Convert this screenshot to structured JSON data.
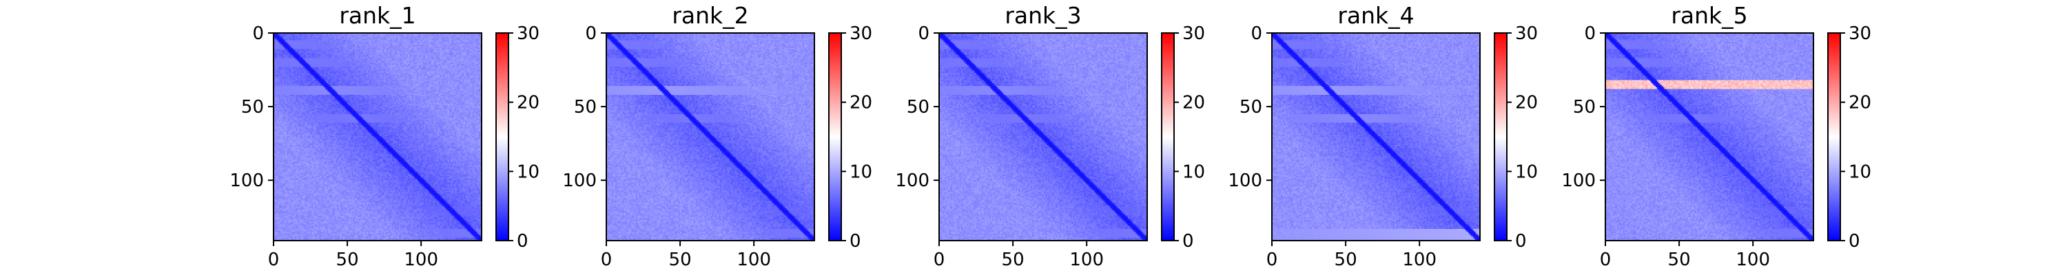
{
  "figure": {
    "colormap": "bwr",
    "colors": {
      "low": "#0000ff",
      "mid": "#ffffff",
      "high": "#ff0000"
    }
  },
  "chart_data": [
    {
      "type": "heatmap",
      "title": "rank_1",
      "size": 141,
      "x_ticks": [
        0,
        50,
        100
      ],
      "y_ticks": [
        0,
        50,
        100
      ],
      "x_tick_labels": [
        "0",
        "50",
        "100"
      ],
      "y_tick_labels": [
        "0",
        "50",
        "100"
      ],
      "xlim": [
        0,
        141
      ],
      "ylim": [
        141,
        0
      ],
      "colorbar": {
        "vmin": 0,
        "vmax": 30,
        "ticks": [
          0,
          10,
          20,
          30
        ],
        "tick_labels": [
          "0",
          "10",
          "20",
          "30"
        ]
      },
      "pattern": {
        "diagonal": 0.5,
        "base": 4.5,
        "light_rows": [
          [
            5,
            10,
            7
          ],
          [
            17,
            22,
            7
          ],
          [
            36,
            41,
            8
          ],
          [
            55,
            60,
            7
          ],
          [
            118,
            123,
            6
          ],
          [
            133,
            138,
            7
          ]
        ],
        "light_cols": [
          [
            5,
            10,
            5
          ],
          [
            19,
            24,
            5
          ],
          [
            57,
            62,
            5
          ],
          [
            95,
            105,
            5
          ]
        ],
        "hot_rows": []
      }
    },
    {
      "type": "heatmap",
      "title": "rank_2",
      "size": 141,
      "x_ticks": [
        0,
        50,
        100
      ],
      "y_ticks": [
        0,
        50,
        100
      ],
      "x_tick_labels": [
        "0",
        "50",
        "100"
      ],
      "y_tick_labels": [
        "0",
        "50",
        "100"
      ],
      "xlim": [
        0,
        141
      ],
      "ylim": [
        141,
        0
      ],
      "colorbar": {
        "vmin": 0,
        "vmax": 30,
        "ticks": [
          0,
          10,
          20,
          30
        ],
        "tick_labels": [
          "0",
          "10",
          "20",
          "30"
        ]
      },
      "pattern": {
        "diagonal": 0.5,
        "base": 4.5,
        "light_rows": [
          [
            5,
            10,
            7
          ],
          [
            17,
            22,
            7
          ],
          [
            36,
            41,
            9
          ],
          [
            55,
            60,
            7
          ],
          [
            118,
            123,
            6
          ],
          [
            133,
            138,
            7
          ]
        ],
        "light_cols": [
          [
            5,
            10,
            5
          ],
          [
            19,
            24,
            5
          ],
          [
            57,
            62,
            5
          ],
          [
            95,
            105,
            5
          ]
        ],
        "hot_rows": []
      }
    },
    {
      "type": "heatmap",
      "title": "rank_3",
      "size": 141,
      "x_ticks": [
        0,
        50,
        100
      ],
      "y_ticks": [
        0,
        50,
        100
      ],
      "x_tick_labels": [
        "0",
        "50",
        "100"
      ],
      "y_tick_labels": [
        "0",
        "50",
        "100"
      ],
      "xlim": [
        0,
        141
      ],
      "ylim": [
        141,
        0
      ],
      "colorbar": {
        "vmin": 0,
        "vmax": 30,
        "ticks": [
          0,
          10,
          20,
          30
        ],
        "tick_labels": [
          "0",
          "10",
          "20",
          "30"
        ]
      },
      "pattern": {
        "diagonal": 0.5,
        "base": 4.5,
        "light_rows": [
          [
            5,
            10,
            7
          ],
          [
            17,
            22,
            7
          ],
          [
            36,
            41,
            8
          ],
          [
            55,
            60,
            7
          ],
          [
            118,
            123,
            6
          ],
          [
            133,
            138,
            7
          ]
        ],
        "light_cols": [
          [
            5,
            10,
            5
          ],
          [
            19,
            24,
            5
          ],
          [
            57,
            62,
            5
          ],
          [
            95,
            105,
            5
          ]
        ],
        "hot_rows": []
      }
    },
    {
      "type": "heatmap",
      "title": "rank_4",
      "size": 141,
      "x_ticks": [
        0,
        50,
        100
      ],
      "y_ticks": [
        0,
        50,
        100
      ],
      "x_tick_labels": [
        "0",
        "50",
        "100"
      ],
      "y_tick_labels": [
        "0",
        "50",
        "100"
      ],
      "xlim": [
        0,
        141
      ],
      "ylim": [
        141,
        0
      ],
      "colorbar": {
        "vmin": 0,
        "vmax": 30,
        "ticks": [
          0,
          10,
          20,
          30
        ],
        "tick_labels": [
          "0",
          "10",
          "20",
          "30"
        ]
      },
      "pattern": {
        "diagonal": 0.5,
        "base": 4.5,
        "light_rows": [
          [
            5,
            10,
            7
          ],
          [
            17,
            22,
            7
          ],
          [
            36,
            41,
            9
          ],
          [
            55,
            60,
            8
          ],
          [
            118,
            123,
            6
          ],
          [
            133,
            141,
            10
          ]
        ],
        "light_cols": [
          [
            5,
            10,
            5
          ],
          [
            19,
            24,
            5
          ],
          [
            57,
            62,
            5
          ],
          [
            95,
            105,
            5
          ]
        ],
        "hot_rows": []
      }
    },
    {
      "type": "heatmap",
      "title": "rank_5",
      "size": 141,
      "x_ticks": [
        0,
        50,
        100
      ],
      "y_ticks": [
        0,
        50,
        100
      ],
      "x_tick_labels": [
        "0",
        "50",
        "100"
      ],
      "y_tick_labels": [
        "0",
        "50",
        "100"
      ],
      "xlim": [
        0,
        141
      ],
      "ylim": [
        141,
        0
      ],
      "colorbar": {
        "vmin": 0,
        "vmax": 30,
        "ticks": [
          0,
          10,
          20,
          30
        ],
        "tick_labels": [
          "0",
          "10",
          "20",
          "30"
        ]
      },
      "pattern": {
        "diagonal": 0.5,
        "base": 4.5,
        "light_rows": [
          [
            5,
            10,
            7
          ],
          [
            17,
            22,
            7
          ],
          [
            55,
            60,
            7
          ],
          [
            118,
            123,
            6
          ],
          [
            133,
            138,
            7
          ]
        ],
        "light_cols": [
          [
            5,
            10,
            5
          ],
          [
            19,
            24,
            5
          ],
          [
            57,
            62,
            5
          ],
          [
            95,
            105,
            5
          ]
        ],
        "hot_rows": [
          [
            32,
            37,
            17
          ]
        ]
      }
    }
  ]
}
